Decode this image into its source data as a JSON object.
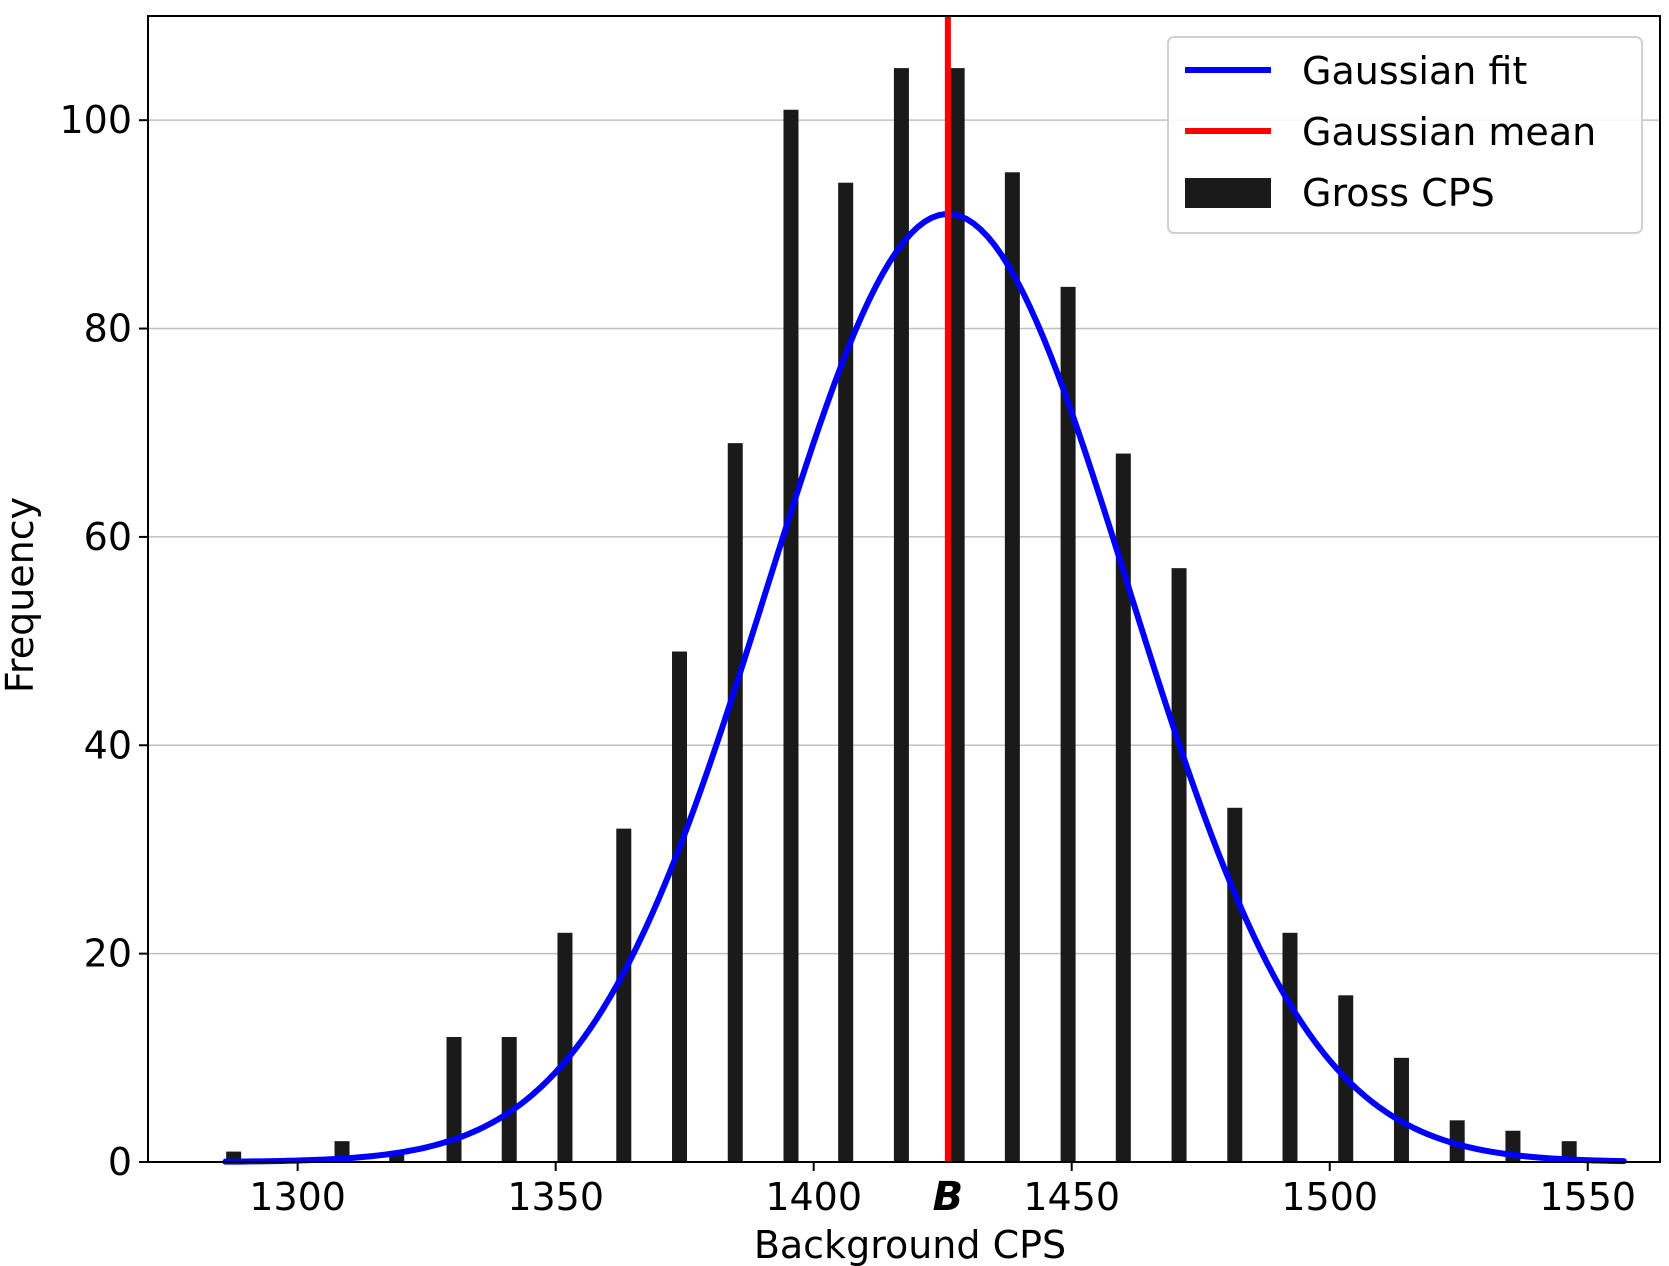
{
  "chart_data": {
    "type": "bar",
    "xlabel": "Background CPS",
    "ylabel": "Frequency",
    "xlim": [
      1271,
      1564
    ],
    "ylim": [
      0,
      110
    ],
    "x_ticks": [
      1300,
      1350,
      1400,
      1450,
      1500,
      1550
    ],
    "y_ticks": [
      0,
      20,
      40,
      60,
      80,
      100
    ],
    "grid": "horizontal",
    "legend_position": "top-right",
    "colors": {
      "bars": "#1a1a1a",
      "fit": "#0000ff",
      "mean": "#ff0000",
      "grid": "#c0c0c0"
    },
    "series": [
      {
        "name": "Gross CPS",
        "type": "bar",
        "x": [
          1287.6,
          1308.6,
          1319.2,
          1330.3,
          1341.0,
          1351.8,
          1363.2,
          1374.0,
          1384.8,
          1395.6,
          1406.2,
          1417.0,
          1427.8,
          1438.5,
          1449.3,
          1460.0,
          1470.8,
          1481.6,
          1492.3,
          1503.1,
          1513.9,
          1524.7,
          1535.5,
          1546.4
        ],
        "values": [
          1,
          2,
          1,
          12,
          12,
          22,
          32,
          49,
          69,
          101,
          94,
          105,
          105,
          95,
          84,
          68,
          57,
          34,
          22,
          16,
          10,
          4,
          3,
          2
        ]
      },
      {
        "name": "Gaussian fit",
        "type": "line",
        "mean": 1426,
        "sigma": 35,
        "amplitude": 91,
        "x_range": [
          1286,
          1557
        ]
      },
      {
        "name": "Gaussian mean",
        "type": "vline",
        "x": 1426
      }
    ],
    "annotations": [
      {
        "text": "B",
        "x": 1426
      }
    ]
  }
}
